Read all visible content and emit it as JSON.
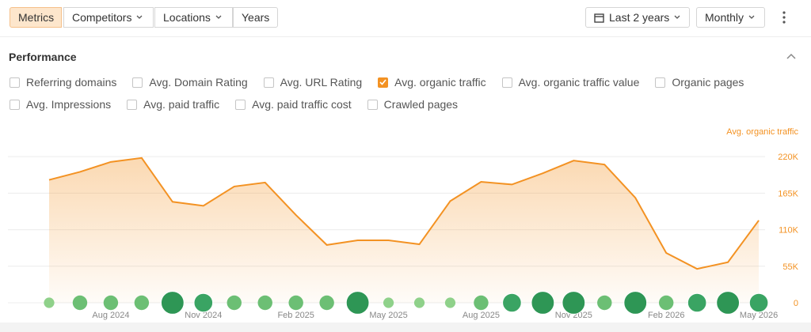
{
  "toolbar": {
    "left": [
      {
        "label": "Metrics",
        "active": true,
        "dropdown": false
      },
      {
        "label": "Competitors",
        "active": false,
        "dropdown": true
      },
      {
        "label": "Locations",
        "active": false,
        "dropdown": true
      },
      {
        "label": "Years",
        "active": false,
        "dropdown": false
      }
    ],
    "right": [
      {
        "label": "Last 2 years",
        "dropdown": true,
        "calendar": true
      },
      {
        "label": "Monthly",
        "dropdown": true,
        "calendar": false
      }
    ]
  },
  "section": {
    "title": "Performance"
  },
  "filters": {
    "rows": [
      [
        {
          "label": "Referring domains",
          "checked": false
        },
        {
          "label": "Avg. Domain Rating",
          "checked": false
        },
        {
          "label": "Avg. URL Rating",
          "checked": false
        },
        {
          "label": "Avg. organic traffic",
          "checked": true
        },
        {
          "label": "Avg. organic traffic value",
          "checked": false
        },
        {
          "label": "Organic pages",
          "checked": false
        }
      ],
      [
        {
          "label": "Avg. Impressions",
          "checked": false
        },
        {
          "label": "Avg. paid traffic",
          "checked": false
        },
        {
          "label": "Avg. paid traffic cost",
          "checked": false
        },
        {
          "label": "Crawled pages",
          "checked": false
        }
      ]
    ]
  },
  "chart_data": {
    "type": "area",
    "categories": [
      null,
      null,
      "Aug 2024",
      null,
      null,
      "Nov 2024",
      null,
      null,
      "Feb 2025",
      null,
      null,
      "May 2025",
      null,
      null,
      "Aug 2025",
      null,
      null,
      "Nov 2025",
      null,
      null,
      "Feb 2026",
      null,
      null,
      "May 2026"
    ],
    "series": [
      {
        "name": "Avg. organic traffic",
        "color": "#f39223",
        "values": [
          185000,
          197000,
          212000,
          218000,
          152000,
          146000,
          175000,
          181000,
          132000,
          87000,
          94000,
          94000,
          88000,
          153000,
          182000,
          178000,
          195000,
          214000,
          208000,
          158000,
          75000,
          51000,
          61000,
          124000
        ]
      }
    ],
    "events": {
      "values": [
        1,
        2,
        2,
        2,
        4,
        3,
        2,
        2,
        2,
        2,
        4,
        1,
        1,
        1,
        2,
        3,
        4,
        4,
        2,
        4,
        2,
        3,
        4,
        3
      ]
    },
    "ylim": [
      0,
      238000
    ],
    "yticks": [
      {
        "value": 0,
        "label": "0"
      },
      {
        "value": 55000,
        "label": "55K"
      },
      {
        "value": 110000,
        "label": "110K"
      },
      {
        "value": 165000,
        "label": "165K"
      },
      {
        "value": 220000,
        "label": "220K"
      }
    ],
    "grid": true
  }
}
